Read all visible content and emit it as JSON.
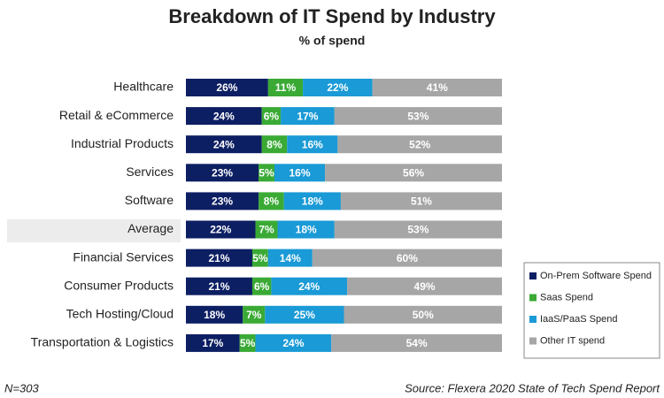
{
  "chart_data": {
    "type": "stacked-bar-horizontal",
    "title": "Breakdown of IT Spend by Industry",
    "subtitle": "% of spend",
    "categories": [
      "Healthcare",
      "Retail & eCommerce",
      "Industrial Products",
      "Services",
      "Software",
      "Average",
      "Financial Services",
      "Consumer Products",
      "Tech Hosting/Cloud",
      "Transportation & Logistics"
    ],
    "series": [
      {
        "name": "On-Prem Software Spend",
        "color": "#0d1f63",
        "values": [
          26,
          24,
          24,
          23,
          23,
          22,
          21,
          21,
          18,
          17
        ],
        "value_labels": [
          "26%",
          "24%",
          "24%",
          "23%",
          "23%",
          "22%",
          "21%",
          "21%",
          "18%",
          "17%"
        ]
      },
      {
        "name": "Saas Spend",
        "color": "#3aaa35",
        "values": [
          11,
          6,
          8,
          5,
          8,
          7,
          5,
          6,
          7,
          5
        ],
        "value_labels": [
          "11%",
          "6%",
          "8%",
          "5%",
          "8%",
          "7%",
          "5%",
          "6%",
          "7%",
          "5%"
        ]
      },
      {
        "name": "IaaS/PaaS Spend",
        "color": "#1a9ad6",
        "values": [
          22,
          17,
          16,
          16,
          18,
          18,
          14,
          24,
          25,
          24
        ],
        "value_labels": [
          "22%",
          "17%",
          "16%",
          "16%",
          "18%",
          "18%",
          "14%",
          "24%",
          "25%",
          "24%"
        ]
      },
      {
        "name": "Other IT spend",
        "color": "#a6a6a6",
        "values": [
          41,
          53,
          52,
          56,
          51,
          53,
          60,
          49,
          50,
          54
        ],
        "value_labels": [
          "41%",
          "53%",
          "52%",
          "56%",
          "51%",
          "53%",
          "60%",
          "49%",
          "50%",
          "54%"
        ]
      }
    ],
    "legend": "bottom-right",
    "footnote": "N=303",
    "source": "Source: Flexera 2020 State of Tech Spend Report"
  }
}
